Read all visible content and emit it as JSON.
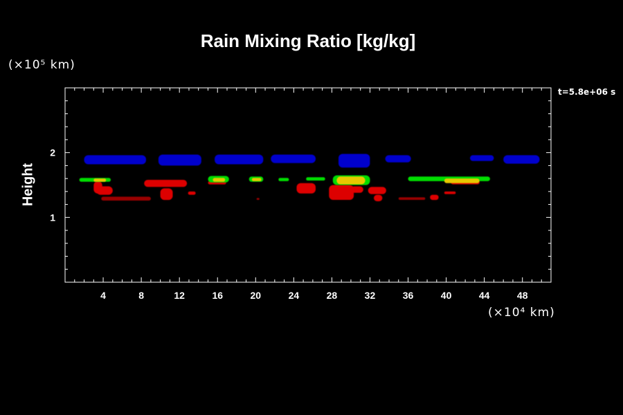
{
  "chart_data": {
    "type": "heatmap",
    "title": "Rain Mixing Ratio [kg/kg]",
    "ylabel": "Height",
    "y_unit_label": "(×10⁵ km)",
    "x_unit_label": "(×10⁴ km)",
    "time_label": "t=5.8e+06 s",
    "xlim": [
      0,
      51
    ],
    "ylim": [
      0,
      3
    ],
    "x_ticks": [
      4,
      8,
      12,
      16,
      20,
      24,
      28,
      32,
      36,
      40,
      44,
      48
    ],
    "y_ticks": [
      1,
      2
    ],
    "colors": {
      "blue": "#0000cc",
      "green": "#00dd00",
      "yellow": "#e8c800",
      "red": "#dd0000",
      "dark_red": "#990000"
    },
    "regions": [
      {
        "level": "blue",
        "x": [
          2.0,
          8.5
        ],
        "y": [
          1.82,
          1.96
        ]
      },
      {
        "level": "blue",
        "x": [
          9.8,
          14.3
        ],
        "y": [
          1.8,
          1.97
        ]
      },
      {
        "level": "blue",
        "x": [
          15.7,
          20.8
        ],
        "y": [
          1.82,
          1.97
        ]
      },
      {
        "level": "blue",
        "x": [
          21.6,
          26.3
        ],
        "y": [
          1.84,
          1.97
        ]
      },
      {
        "level": "blue",
        "x": [
          28.7,
          32.0
        ],
        "y": [
          1.77,
          1.98
        ]
      },
      {
        "level": "blue",
        "x": [
          33.6,
          36.3
        ],
        "y": [
          1.85,
          1.96
        ]
      },
      {
        "level": "blue",
        "x": [
          42.5,
          45.0
        ],
        "y": [
          1.87,
          1.96
        ]
      },
      {
        "level": "blue",
        "x": [
          46.0,
          49.8
        ],
        "y": [
          1.83,
          1.96
        ]
      },
      {
        "level": "green",
        "x": [
          1.5,
          4.8
        ],
        "y": [
          1.55,
          1.61
        ]
      },
      {
        "level": "yellow",
        "x": [
          3.0,
          4.3
        ],
        "y": [
          1.55,
          1.6
        ]
      },
      {
        "level": "green",
        "x": [
          15.0,
          17.2
        ],
        "y": [
          1.54,
          1.64
        ]
      },
      {
        "level": "yellow",
        "x": [
          15.5,
          16.8
        ],
        "y": [
          1.55,
          1.61
        ]
      },
      {
        "level": "green",
        "x": [
          19.3,
          20.8
        ],
        "y": [
          1.55,
          1.63
        ]
      },
      {
        "level": "yellow",
        "x": [
          19.6,
          20.6
        ],
        "y": [
          1.56,
          1.61
        ]
      },
      {
        "level": "green",
        "x": [
          22.4,
          23.5
        ],
        "y": [
          1.56,
          1.61
        ]
      },
      {
        "level": "green",
        "x": [
          25.3,
          27.3
        ],
        "y": [
          1.57,
          1.62
        ]
      },
      {
        "level": "green",
        "x": [
          28.1,
          32.0
        ],
        "y": [
          1.5,
          1.65
        ]
      },
      {
        "level": "yellow",
        "x": [
          28.5,
          31.5
        ],
        "y": [
          1.51,
          1.63
        ]
      },
      {
        "level": "green",
        "x": [
          36.0,
          44.6
        ],
        "y": [
          1.56,
          1.63
        ]
      },
      {
        "level": "yellow",
        "x": [
          39.8,
          43.5
        ],
        "y": [
          1.53,
          1.6
        ]
      },
      {
        "level": "red",
        "x": [
          40.5,
          43.5
        ],
        "y": [
          1.51,
          1.57
        ]
      },
      {
        "level": "red",
        "x": [
          15.0,
          16.9
        ],
        "y": [
          1.51,
          1.56
        ]
      },
      {
        "level": "red",
        "x": [
          3.0,
          3.9
        ],
        "y": [
          1.37,
          1.56
        ]
      },
      {
        "level": "red",
        "x": [
          3.3,
          5.0
        ],
        "y": [
          1.35,
          1.48
        ]
      },
      {
        "level": "red",
        "x": [
          8.3,
          12.8
        ],
        "y": [
          1.47,
          1.58
        ]
      },
      {
        "level": "red",
        "x": [
          10.0,
          11.3
        ],
        "y": [
          1.27,
          1.45
        ]
      },
      {
        "level": "red",
        "x": [
          12.9,
          13.7
        ],
        "y": [
          1.35,
          1.4
        ]
      },
      {
        "level": "red",
        "x": [
          24.3,
          26.3
        ],
        "y": [
          1.37,
          1.53
        ]
      },
      {
        "level": "red",
        "x": [
          27.7,
          30.3
        ],
        "y": [
          1.27,
          1.5
        ]
      },
      {
        "level": "red",
        "x": [
          30.0,
          31.3
        ],
        "y": [
          1.38,
          1.48
        ]
      },
      {
        "level": "red",
        "x": [
          31.8,
          33.7
        ],
        "y": [
          1.36,
          1.47
        ]
      },
      {
        "level": "red",
        "x": [
          32.4,
          33.3
        ],
        "y": [
          1.25,
          1.35
        ]
      },
      {
        "level": "red",
        "x": [
          38.3,
          39.2
        ],
        "y": [
          1.27,
          1.35
        ]
      },
      {
        "level": "red",
        "x": [
          39.8,
          41.0
        ],
        "y": [
          1.36,
          1.4
        ]
      },
      {
        "level": "dark_red",
        "x": [
          3.8,
          9.0
        ],
        "y": [
          1.26,
          1.32
        ]
      },
      {
        "level": "dark_red",
        "x": [
          35.0,
          37.8
        ],
        "y": [
          1.27,
          1.31
        ]
      },
      {
        "level": "dark_red",
        "x": [
          20.1,
          20.4
        ],
        "y": [
          1.27,
          1.3
        ]
      }
    ]
  }
}
